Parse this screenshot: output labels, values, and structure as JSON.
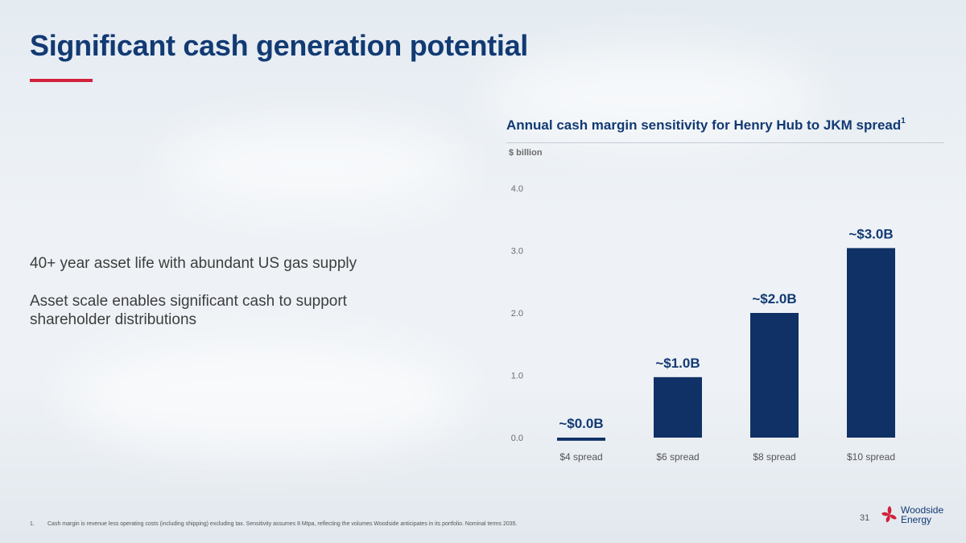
{
  "page": {
    "title": "Significant cash generation potential",
    "bullets": [
      "40+ year asset life with abundant US gas supply",
      "Asset scale enables significant cash to support shareholder distributions"
    ],
    "footnote_number": "1.",
    "footnote_text": "Cash margin is revenue less operating costs (including shipping) excluding tax. Sensitivity assumes 8 Mtpa, reflecting the volumes Woodside anticipates in its portfolio. Nominal terms 2035.",
    "page_number": "31",
    "logo": {
      "line1": "Woodside",
      "line2": "Energy",
      "icon": "woodside-flower-icon",
      "color": "#d1213b"
    }
  },
  "chart_data": {
    "type": "bar",
    "title": "Annual cash margin sensitivity for Henry Hub to JKM spread",
    "title_superscript": "1",
    "ylabel": "$ billion",
    "categories": [
      "$4 spread",
      "$6 spread",
      "$8 spread",
      "$10 spread"
    ],
    "values": [
      -0.05,
      0.97,
      2.0,
      3.04
    ],
    "data_labels": [
      "~$0.0B",
      "~$1.0B",
      "~$2.0B",
      "~$3.0B"
    ],
    "ylim": [
      0,
      4
    ],
    "yticks": [
      "0.0",
      "1.0",
      "2.0",
      "3.0",
      "4.0"
    ],
    "grid": false,
    "bar_color": "#0f3165"
  }
}
